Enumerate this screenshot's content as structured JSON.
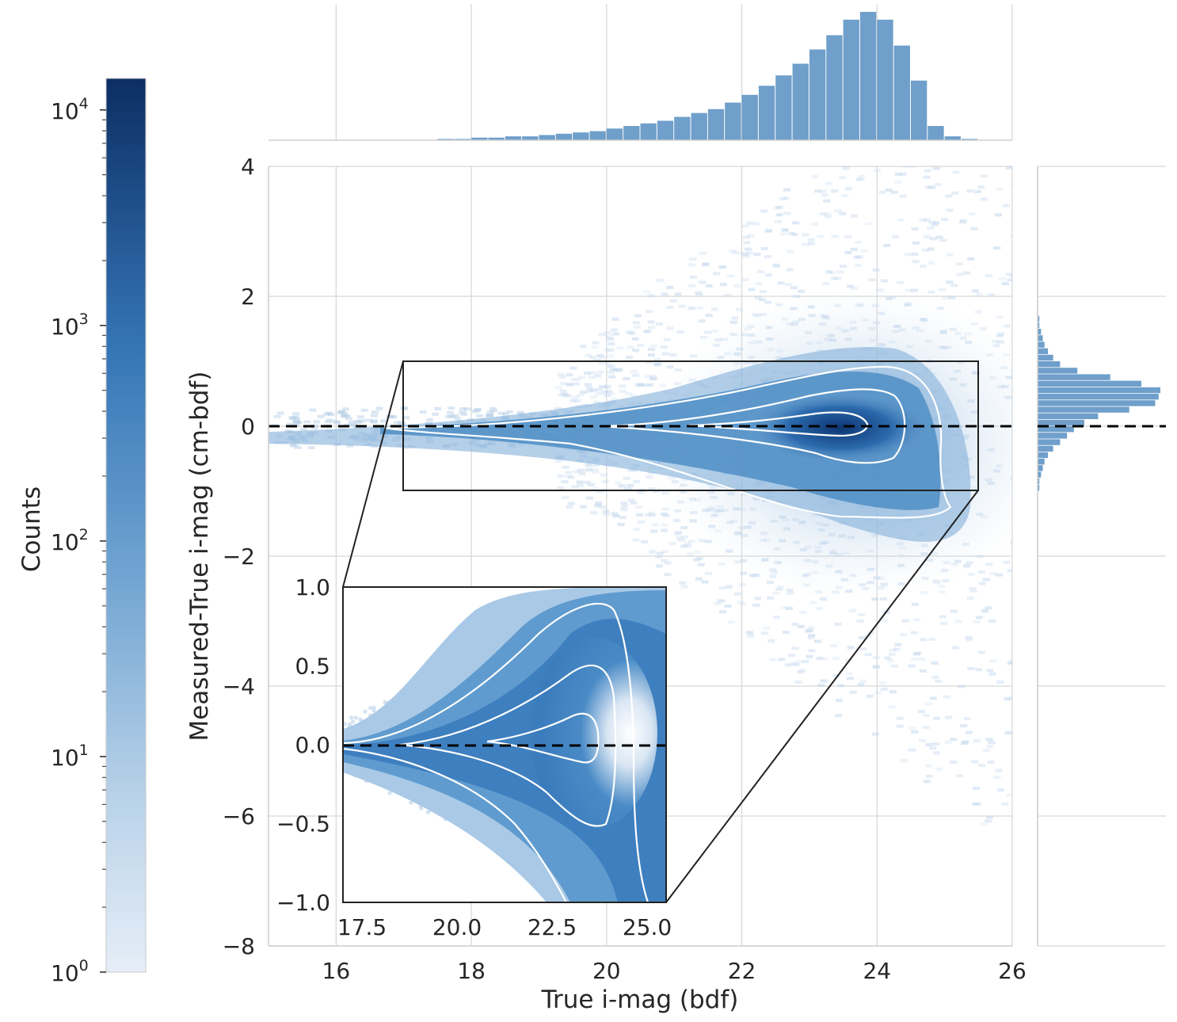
{
  "colors": {
    "cmap_low": "#dfe9f6",
    "cmap_mid": "#4f8ec6",
    "cmap_high": "#0c2e63",
    "hist_bar": "#6f9fca",
    "contour": "#ffffff",
    "zero_line": "#000000",
    "grid": "#d6d6d6"
  },
  "chart_data": {
    "type": "heatmap",
    "xlabel": "True i-mag (bdf)",
    "ylabel": "Measured-True i-mag (cm-bdf)",
    "xlim": [
      15,
      26
    ],
    "ylim": [
      -8,
      4
    ],
    "x_ticks": [
      "16",
      "18",
      "20",
      "22",
      "24",
      "26"
    ],
    "y_ticks": [
      "4",
      "2",
      "0",
      "−2",
      "−4",
      "−6",
      "−8"
    ],
    "grid": true,
    "scale": "log",
    "reference_line_y": 0,
    "colorbar": {
      "label": "Counts",
      "scale": "log",
      "range": [
        1,
        14000
      ],
      "ticks": [
        {
          "base": "10",
          "exp": "4",
          "value": 10000
        },
        {
          "base": "10",
          "exp": "3",
          "value": 1000
        },
        {
          "base": "10",
          "exp": "2",
          "value": 100
        },
        {
          "base": "10",
          "exp": "1",
          "value": 10
        },
        {
          "base": "10",
          "exp": "0",
          "value": 1
        }
      ]
    },
    "top_histogram": {
      "bin_width": 0.25,
      "bin_start": 17.5,
      "counts": [
        1,
        1,
        2,
        2,
        3,
        3,
        4,
        5,
        6,
        7,
        9,
        11,
        13,
        15,
        18,
        21,
        24,
        29,
        35,
        42,
        50,
        59,
        70,
        81,
        93,
        99,
        93,
        73,
        46,
        11,
        3,
        1
      ]
    },
    "right_histogram": {
      "bin_width": 0.1,
      "bin_start": -1.0,
      "counts": [
        1,
        1,
        2,
        3,
        4,
        6,
        9,
        13,
        17,
        21,
        27,
        35,
        53,
        68,
        70,
        71,
        60,
        42,
        23,
        13,
        9,
        6,
        4,
        3,
        2,
        1,
        1
      ]
    },
    "zoom_box": {
      "x": [
        17,
        25.5
      ],
      "y": [
        -1,
        1
      ]
    },
    "contour_levels": 3,
    "inset": {
      "xlim": [
        17,
        25.5
      ],
      "ylim": [
        -1,
        1
      ],
      "x_ticks": [
        "17.5",
        "20.0",
        "22.5",
        "25.0"
      ],
      "y_ticks": [
        "1.0",
        "0.5",
        "0.0",
        "−0.5",
        "−1.0"
      ]
    }
  }
}
